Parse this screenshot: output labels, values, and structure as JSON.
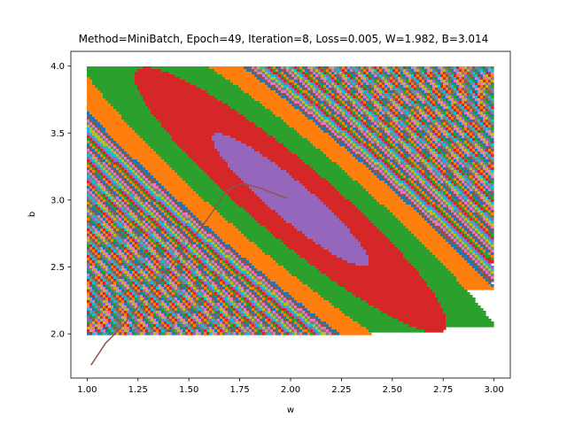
{
  "chart_data": {
    "type": "contour",
    "title": "Method=MiniBatch, Epoch=49, Iteration=8, Loss=0.005, W=1.982, B=3.014",
    "xlabel": "w",
    "ylabel": "b",
    "xlim": [
      0.92,
      3.08
    ],
    "ylim": [
      1.67,
      4.11
    ],
    "xticks": [
      1.0,
      1.25,
      1.5,
      1.75,
      2.0,
      2.25,
      2.5,
      2.75,
      3.0
    ],
    "xtick_labels": [
      "1.00",
      "1.25",
      "1.50",
      "1.75",
      "2.00",
      "2.25",
      "2.50",
      "2.75",
      "3.00"
    ],
    "yticks": [
      2.0,
      2.5,
      3.0,
      3.5,
      4.0
    ],
    "ytick_labels": [
      "2.0",
      "2.5",
      "3.0",
      "3.5",
      "4.0"
    ],
    "grid": false,
    "surface": {
      "w_range": [
        1.0,
        3.0
      ],
      "b_range": [
        2.0,
        4.0
      ],
      "minimum": {
        "w": 2.0,
        "b": 3.0
      },
      "palette": [
        "#9467bd",
        "#d62728",
        "#2ca02c",
        "#ff7f0e",
        "#1f77b4",
        "#8c564b",
        "#e377c2",
        "#7f7f7f",
        "#bcbd22",
        "#17becf"
      ]
    },
    "series": [
      {
        "color": "#8c564b",
        "points": [
          [
            1.02,
            1.77
          ],
          [
            1.06,
            1.86
          ],
          [
            1.09,
            1.93
          ],
          [
            1.13,
            1.99
          ],
          [
            1.18,
            2.07
          ],
          [
            1.25,
            2.2
          ],
          [
            1.32,
            2.33
          ],
          [
            1.4,
            2.47
          ],
          [
            1.47,
            2.62
          ],
          [
            1.55,
            2.77
          ],
          [
            1.62,
            2.92
          ],
          [
            1.68,
            3.06
          ],
          [
            1.72,
            3.1
          ],
          [
            1.76,
            3.12
          ],
          [
            1.8,
            3.11
          ],
          [
            1.85,
            3.09
          ],
          [
            1.9,
            3.06
          ],
          [
            1.95,
            3.03
          ],
          [
            1.982,
            3.014
          ]
        ]
      }
    ]
  }
}
